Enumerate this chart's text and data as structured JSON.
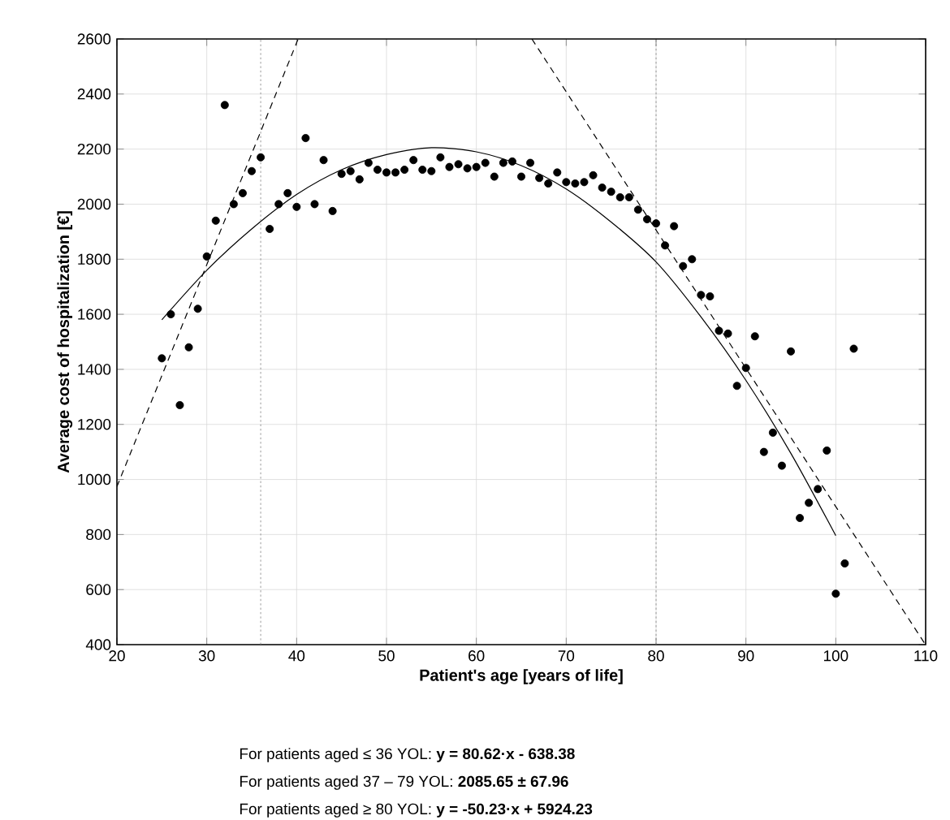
{
  "chart_data": {
    "type": "scatter",
    "xlabel": "Patient's age [years of life]",
    "ylabel": "Average cost of hospitalization [€]",
    "xlim": [
      20,
      110
    ],
    "ylim": [
      400,
      2600
    ],
    "xticks": [
      20,
      30,
      40,
      50,
      60,
      70,
      80,
      90,
      100,
      110
    ],
    "yticks": [
      400,
      600,
      800,
      1000,
      1200,
      1400,
      1600,
      1800,
      2000,
      2200,
      2400,
      2600
    ],
    "grid": true,
    "marker": "circle",
    "series": [
      {
        "color": "#000000",
        "x": [
          25,
          26,
          27,
          28,
          29,
          30,
          31,
          32,
          33,
          34,
          35,
          36,
          37,
          38,
          39,
          40,
          41,
          42,
          43,
          44,
          45,
          46,
          47,
          48,
          49,
          50,
          51,
          52,
          53,
          54,
          55,
          56,
          57,
          58,
          59,
          60,
          61,
          62,
          63,
          64,
          65,
          66,
          67,
          68,
          69,
          70,
          71,
          72,
          73,
          74,
          75,
          76,
          77,
          78,
          79,
          80,
          81,
          82,
          83,
          84,
          85,
          86,
          87,
          88,
          89,
          90,
          91,
          92,
          93,
          94,
          95,
          96,
          97,
          98,
          99,
          100,
          101,
          102
        ],
        "values": [
          1440,
          1600,
          1270,
          1480,
          1620,
          1810,
          1940,
          2360,
          2000,
          2040,
          2120,
          2170,
          1910,
          2000,
          2040,
          1990,
          2240,
          2000,
          2160,
          1975,
          2110,
          2120,
          2090,
          2150,
          2125,
          2115,
          2115,
          2125,
          2160,
          2125,
          2120,
          2170,
          2135,
          2145,
          2130,
          2135,
          2150,
          2100,
          2150,
          2155,
          2100,
          2150,
          2095,
          2075,
          2115,
          2080,
          2075,
          2080,
          2105,
          2060,
          2045,
          2025,
          2025,
          1980,
          1945,
          1930,
          1850,
          1920,
          1775,
          1800,
          1670,
          1665,
          1540,
          1530,
          1340,
          1405,
          1520,
          1100,
          1170,
          1050,
          1465,
          860,
          915,
          965,
          1105,
          585,
          695,
          1475
        ]
      },
      {
        "type": "line",
        "color": "#000000",
        "line_style": "dashed",
        "marker": "none",
        "x": [
          20,
          40.17
        ],
        "values": [
          974,
          2600
        ]
      },
      {
        "type": "line",
        "color": "#000000",
        "line_style": "dashed",
        "marker": "none",
        "x": [
          66.18,
          109.9
        ],
        "values": [
          2600,
          404
        ]
      },
      {
        "type": "line",
        "color": "#000000",
        "line_style": "solid",
        "marker": "none",
        "x": [
          25,
          30,
          35,
          40,
          45,
          50,
          55,
          60,
          65,
          70,
          75,
          80,
          85,
          90,
          95,
          100
        ],
        "values": [
          1580,
          1760,
          1910,
          2035,
          2125,
          2180,
          2205,
          2190,
          2140,
          2055,
          1935,
          1790,
          1590,
          1360,
          1095,
          796
        ]
      }
    ],
    "ref_lines": [
      {
        "axis": "x",
        "value": 36,
        "line_style": "dotted",
        "color": "#808080"
      },
      {
        "axis": "x",
        "value": 80,
        "line_style": "dotted",
        "color": "#808080"
      }
    ],
    "annotations": [
      "For patients aged ≤ 36 YOL: **y = 80.62·x - 638.38**",
      "For patients aged 37 – 79 YOL: **2085.65 ± 67.96**",
      "For patients aged ≥ 80 YOL: **y = -50.23·x + 5924.23**"
    ]
  }
}
